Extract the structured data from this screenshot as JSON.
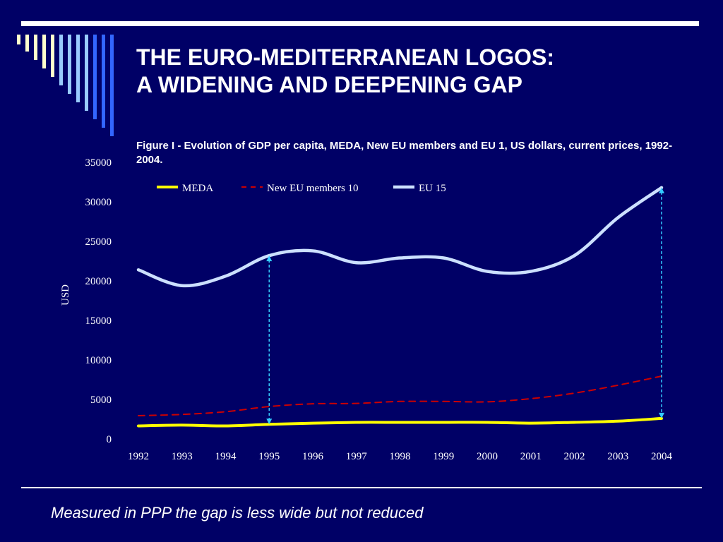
{
  "slide": {
    "title_line1": "THE EURO-MEDITERRANEAN LOGOS:",
    "title_line2": "A WIDENING AND DEEPENING GAP",
    "footer": "Measured in PPP the gap is less wide but not reduced"
  },
  "colors": {
    "background": "#000066",
    "meda": "#ffff00",
    "new_eu": "#cc0000",
    "eu15": "#cce0ff",
    "arrow": "#33ccff",
    "deco_light": "#ffffcc",
    "deco_mid": "#99ccff",
    "deco_dark": "#3366ff"
  },
  "chart_data": {
    "type": "line",
    "title": "Figure I - Evolution of GDP per capita, MEDA, New EU members and EU 1, US dollars, current prices, 1992-2004.",
    "xlabel": "",
    "ylabel": "USD",
    "ylim": [
      0,
      35000
    ],
    "yticks": [
      0,
      5000,
      10000,
      15000,
      20000,
      25000,
      30000,
      35000
    ],
    "categories": [
      "1992",
      "1993",
      "1994",
      "1995",
      "1996",
      "1997",
      "1998",
      "1999",
      "2000",
      "2001",
      "2002",
      "2003",
      "2004"
    ],
    "grid": false,
    "legend_position": "top",
    "series": [
      {
        "name": "MEDA",
        "style": "solid",
        "values": [
          1650,
          1750,
          1650,
          1850,
          2000,
          2100,
          2100,
          2100,
          2100,
          2000,
          2100,
          2250,
          2600
        ]
      },
      {
        "name": "New EU members 10",
        "style": "dashed",
        "values": [
          2950,
          3100,
          3450,
          4100,
          4450,
          4500,
          4750,
          4750,
          4700,
          5100,
          5800,
          6800,
          7950
        ]
      },
      {
        "name": "EU 15",
        "style": "solid",
        "values": [
          21400,
          19400,
          20600,
          23200,
          23800,
          22300,
          22900,
          22900,
          21200,
          21200,
          23200,
          28000,
          31800
        ]
      }
    ],
    "annotations": [
      {
        "type": "double-arrow",
        "x": "1995",
        "from": 1850,
        "to": 23200
      },
      {
        "type": "double-arrow",
        "x": "2004",
        "from": 2600,
        "to": 31800
      }
    ]
  }
}
